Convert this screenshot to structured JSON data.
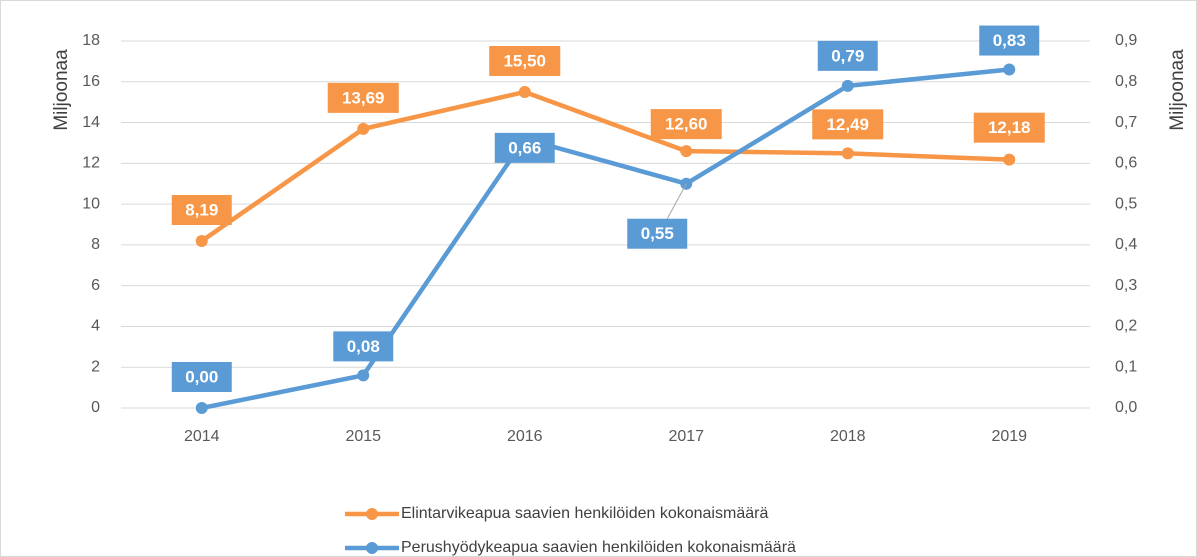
{
  "chart_data": {
    "type": "line",
    "categories": [
      "2014",
      "2015",
      "2016",
      "2017",
      "2018",
      "2019"
    ],
    "ylabel": "Miljoonaa",
    "y2label": "Miljoonaa",
    "ylim": [
      0,
      18
    ],
    "yticks": [
      0,
      2,
      4,
      6,
      8,
      10,
      12,
      14,
      16,
      18
    ],
    "y2lim": [
      0,
      0.9
    ],
    "y2ticks": [
      {
        "value": 0,
        "label": "0,0"
      },
      {
        "value": 0.1,
        "label": "0,1"
      },
      {
        "value": 0.2,
        "label": "0,2"
      },
      {
        "value": 0.3,
        "label": "0,3"
      },
      {
        "value": 0.4,
        "label": "0,4"
      },
      {
        "value": 0.5,
        "label": "0,5"
      },
      {
        "value": 0.6,
        "label": "0,6"
      },
      {
        "value": 0.7,
        "label": "0,7"
      },
      {
        "value": 0.8,
        "label": "0,8"
      },
      {
        "value": 0.9,
        "label": "0,9"
      }
    ],
    "grid": true,
    "legend": "bottom",
    "series": [
      {
        "name": "Elintarvikeapua saavien henkilöiden kokonaismäärä",
        "color": "#f79646",
        "axis": "y",
        "values": [
          8.19,
          13.69,
          15.5,
          12.6,
          12.49,
          12.18
        ],
        "value_labels": [
          "8,19",
          "13,69",
          "15,50",
          "12,60",
          "12,49",
          "12,18"
        ]
      },
      {
        "name": "Perushyödykeapua saavien henkilöiden kokonaismäärä",
        "color": "#5b9bd5",
        "axis": "y2",
        "values": [
          0.0,
          0.08,
          0.66,
          0.55,
          0.79,
          0.83
        ],
        "value_labels": [
          "0,00",
          "0,08",
          "0,66",
          "0,55",
          "0,79",
          "0,83"
        ]
      }
    ]
  }
}
